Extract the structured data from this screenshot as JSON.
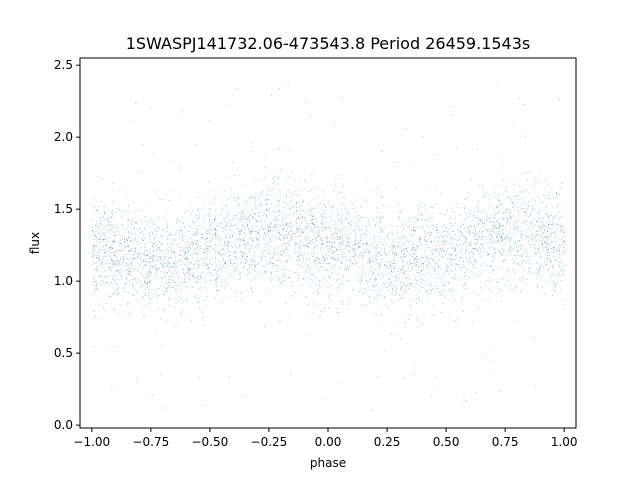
{
  "chart_data": {
    "type": "scatter",
    "title": "1SWASPJ141732.06-473543.8 Period 26459.1543s",
    "xlabel": "phase",
    "ylabel": "flux",
    "xlim": [
      -1.05,
      1.05
    ],
    "ylim": [
      -0.02,
      2.55
    ],
    "x_ticks": [
      "−1.00",
      "−0.75",
      "−0.50",
      "−0.25",
      "0.00",
      "0.25",
      "0.50",
      "0.75",
      "1.00"
    ],
    "x_tick_values": [
      -1.0,
      -0.75,
      -0.5,
      -0.25,
      0.0,
      0.25,
      0.5,
      0.75,
      1.0
    ],
    "y_ticks": [
      "0.0",
      "0.5",
      "1.0",
      "1.5",
      "2.0",
      "2.5"
    ],
    "y_tick_values": [
      0.0,
      0.5,
      1.0,
      1.5,
      2.0,
      2.5
    ],
    "grid": false,
    "point_color": "#1f77b4",
    "model": {
      "description_points": [
        {
          "phase": -1.0,
          "flux": 1.22
        },
        {
          "phase": -0.75,
          "flux": 1.13
        },
        {
          "phase": -0.5,
          "flux": 1.2
        },
        {
          "phase": -0.25,
          "flux": 1.34
        },
        {
          "phase": 0.0,
          "flux": 1.25
        },
        {
          "phase": 0.25,
          "flux": 1.13
        },
        {
          "phase": 0.5,
          "flux": 1.2
        },
        {
          "phase": 0.75,
          "flux": 1.33
        },
        {
          "phase": 1.0,
          "flux": 1.25
        }
      ],
      "scatter_sigma": 0.18
    }
  }
}
